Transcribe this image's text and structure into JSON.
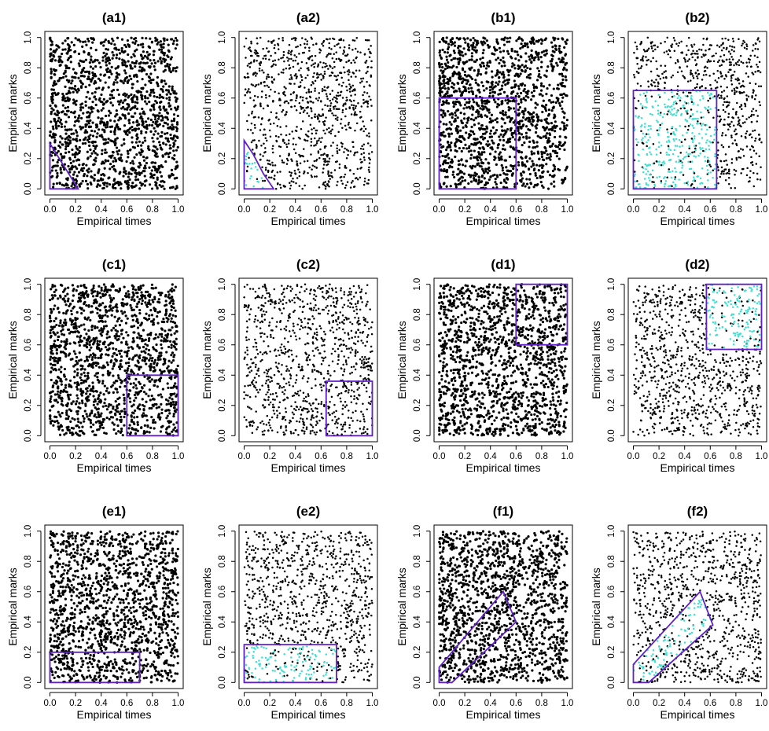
{
  "chart_data": {
    "type": "scatter",
    "layout": "3 rows x 4 columns of scatter panels",
    "xlabel": "Empirical times",
    "ylabel": "Empirical marks",
    "xlim": [
      0,
      1
    ],
    "ylim": [
      0,
      1
    ],
    "x_ticks": [
      "0.0",
      "0.2",
      "0.4",
      "0.6",
      "0.8",
      "1.0"
    ],
    "y_ticks": [
      "0.0",
      "0.2",
      "0.4",
      "0.6",
      "0.8",
      "1.0"
    ],
    "grid": false,
    "legend": "none",
    "colors": {
      "points": "#000000",
      "highlighted_points": "#40e0d0",
      "region_outline": "#6020c8",
      "frame": "#000000"
    },
    "panels": [
      {
        "title": "(a1)",
        "density": "dense",
        "highlighted": false,
        "region": [
          [
            0,
            0
          ],
          [
            0,
            0.3
          ],
          [
            0.22,
            0
          ]
        ]
      },
      {
        "title": "(a2)",
        "density": "sparse",
        "highlighted": true,
        "region": [
          [
            0,
            0
          ],
          [
            0,
            0.32
          ],
          [
            0.07,
            0.23
          ],
          [
            0.15,
            0.1
          ],
          [
            0.23,
            0
          ]
        ]
      },
      {
        "title": "(b1)",
        "density": "dense",
        "highlighted": false,
        "region": [
          [
            0,
            0
          ],
          [
            0,
            0.6
          ],
          [
            0.6,
            0.6
          ],
          [
            0.6,
            0
          ]
        ]
      },
      {
        "title": "(b2)",
        "density": "sparse",
        "highlighted": true,
        "region": [
          [
            0,
            0
          ],
          [
            0,
            0.65
          ],
          [
            0.65,
            0.65
          ],
          [
            0.65,
            0
          ]
        ]
      },
      {
        "title": "(c1)",
        "density": "dense",
        "highlighted": false,
        "region": [
          [
            0.6,
            0
          ],
          [
            0.6,
            0.4
          ],
          [
            1,
            0.4
          ],
          [
            1,
            0
          ]
        ]
      },
      {
        "title": "(c2)",
        "density": "sparse",
        "highlighted": false,
        "region": [
          [
            0.64,
            0
          ],
          [
            0.64,
            0.36
          ],
          [
            1,
            0.36
          ],
          [
            1,
            0
          ]
        ]
      },
      {
        "title": "(d1)",
        "density": "dense",
        "highlighted": false,
        "region": [
          [
            0.6,
            0.6
          ],
          [
            0.6,
            1
          ],
          [
            1,
            1
          ],
          [
            1,
            0.6
          ]
        ]
      },
      {
        "title": "(d2)",
        "density": "sparse",
        "highlighted": true,
        "region": [
          [
            0.57,
            0.57
          ],
          [
            0.57,
            1
          ],
          [
            1,
            1
          ],
          [
            1,
            0.57
          ]
        ]
      },
      {
        "title": "(e1)",
        "density": "dense",
        "highlighted": false,
        "region": [
          [
            0,
            0
          ],
          [
            0,
            0.2
          ],
          [
            0.7,
            0.2
          ],
          [
            0.7,
            0
          ]
        ]
      },
      {
        "title": "(e2)",
        "density": "sparse",
        "highlighted": true,
        "region": [
          [
            0,
            0
          ],
          [
            0,
            0.25
          ],
          [
            0.72,
            0.25
          ],
          [
            0.72,
            0
          ]
        ]
      },
      {
        "title": "(f1)",
        "density": "dense",
        "highlighted": false,
        "region": [
          [
            0,
            0
          ],
          [
            0,
            0.1
          ],
          [
            0.5,
            0.6
          ],
          [
            0.6,
            0.4
          ],
          [
            0.1,
            0
          ]
        ]
      },
      {
        "title": "(f2)",
        "density": "sparse",
        "highlighted": true,
        "region": [
          [
            0,
            0
          ],
          [
            0,
            0.12
          ],
          [
            0.52,
            0.6
          ],
          [
            0.62,
            0.38
          ],
          [
            0.12,
            0
          ]
        ]
      }
    ]
  }
}
